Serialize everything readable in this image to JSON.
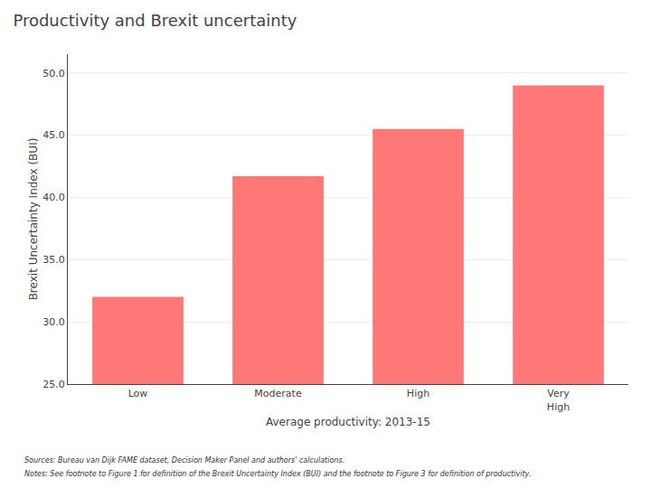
{
  "chart_data": {
    "type": "bar",
    "title": "Productivity and Brexit uncertainty",
    "categories": [
      "Low",
      "Moderate",
      "High",
      "Very\nHigh"
    ],
    "values": [
      32.0,
      41.7,
      45.5,
      49.0
    ],
    "color": "#FF7878",
    "xlabel": "Average productivity: 2013-15",
    "ylabel": "Brexit Uncertainty Index (BUI)",
    "ylim": [
      25.0,
      51.5
    ],
    "yticks": [
      {
        "value": 25.0,
        "label": "25.0"
      },
      {
        "value": 30.0,
        "label": "30.0"
      },
      {
        "value": 35.0,
        "label": "35.0"
      },
      {
        "value": 40.0,
        "label": "40.0"
      },
      {
        "value": 45.0,
        "label": "45.0"
      },
      {
        "value": 50.0,
        "label": "50.0"
      }
    ],
    "grid": true,
    "annotations": [
      "Sources: Bureau van Dijk FAME dataset, Decision Maker Panel and authors' calculations.",
      "Notes: See footnote to Figure 1 for definition of the Brexit Uncertainty Index (BUI) and the footnote to Figure 3 for definition of productivity."
    ]
  }
}
